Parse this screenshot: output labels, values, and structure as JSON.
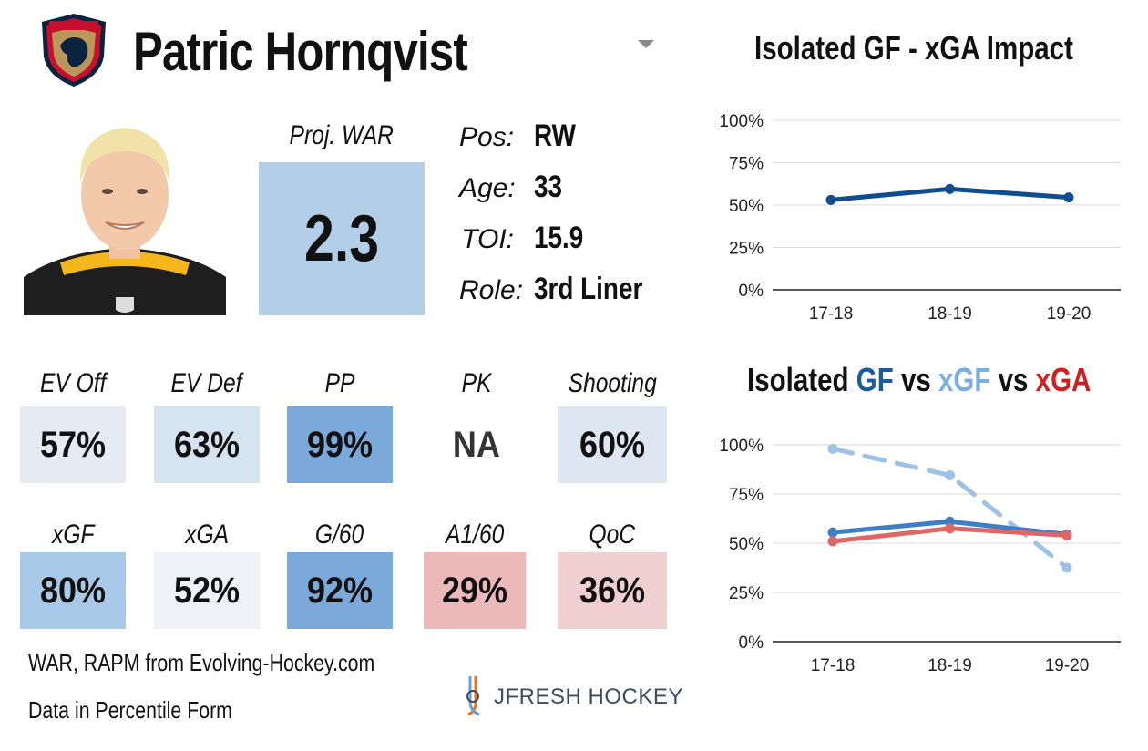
{
  "player": {
    "name": "Patric Hornqvist"
  },
  "war": {
    "label": "Proj. WAR",
    "value": "2.3"
  },
  "bio": [
    {
      "label": "Pos:",
      "value": "RW"
    },
    {
      "label": "Age:",
      "value": "33"
    },
    {
      "label": "TOI:",
      "value": "15.9"
    },
    {
      "label": "Role:",
      "value": "3rd Liner"
    }
  ],
  "stats_row1": [
    {
      "label": "EV Off",
      "value": "57%",
      "color": "#e6ebf3"
    },
    {
      "label": "EV Def",
      "value": "63%",
      "color": "#d6e3f1"
    },
    {
      "label": "PP",
      "value": "99%",
      "color": "#7ba9d9"
    },
    {
      "label": "PK",
      "value": "NA",
      "color": "#ffffff"
    },
    {
      "label": "Shooting",
      "value": "60%",
      "color": "#dde6f1"
    }
  ],
  "stats_row2": [
    {
      "label": "xGF",
      "value": "80%",
      "color": "#a9c9e8"
    },
    {
      "label": "xGA",
      "value": "52%",
      "color": "#eef1f5"
    },
    {
      "label": "G/60",
      "value": "92%",
      "color": "#7ba9d9"
    },
    {
      "label": "A1/60",
      "value": "29%",
      "color": "#ebb9b9"
    },
    {
      "label": "QoC",
      "value": "36%",
      "color": "#efcfcf"
    }
  ],
  "footer": {
    "line1": "WAR, RAPM from  Evolving-Hockey.com",
    "line2": "Data in Percentile Form",
    "brand": "JFRESH HOCKEY"
  },
  "chart_data": [
    {
      "type": "line",
      "title": "Isolated GF - xGA Impact",
      "categories": [
        "17-18",
        "18-19",
        "19-20"
      ],
      "ylim": [
        0,
        100
      ],
      "yticks": [
        "0%",
        "25%",
        "50%",
        "75%",
        "100%"
      ],
      "grid": true,
      "series": [
        {
          "values": [
            53,
            59.5,
            54.5
          ],
          "color": "#0f4e8e",
          "style": "solid"
        }
      ]
    },
    {
      "type": "line",
      "title": {
        "prefix": "Isolated ",
        "gf": "GF",
        "vs1": " vs ",
        "xgf": "xGF",
        "vs2": " vs ",
        "xga": "xGA"
      },
      "categories": [
        "17-18",
        "18-19",
        "19-20"
      ],
      "ylim": [
        0,
        100
      ],
      "yticks": [
        "0%",
        "25%",
        "50%",
        "75%",
        "100%"
      ],
      "grid": true,
      "series": [
        {
          "name": "xGF",
          "values": [
            98,
            84.5,
            37.5
          ],
          "color": "#9cc2e6",
          "style": "dashed"
        },
        {
          "name": "GF",
          "values": [
            55.5,
            61,
            54.5
          ],
          "color": "#3d7fc4",
          "style": "solid"
        },
        {
          "name": "xGA",
          "values": [
            51,
            57.5,
            54
          ],
          "color": "#e06666",
          "style": "solid"
        }
      ]
    }
  ]
}
